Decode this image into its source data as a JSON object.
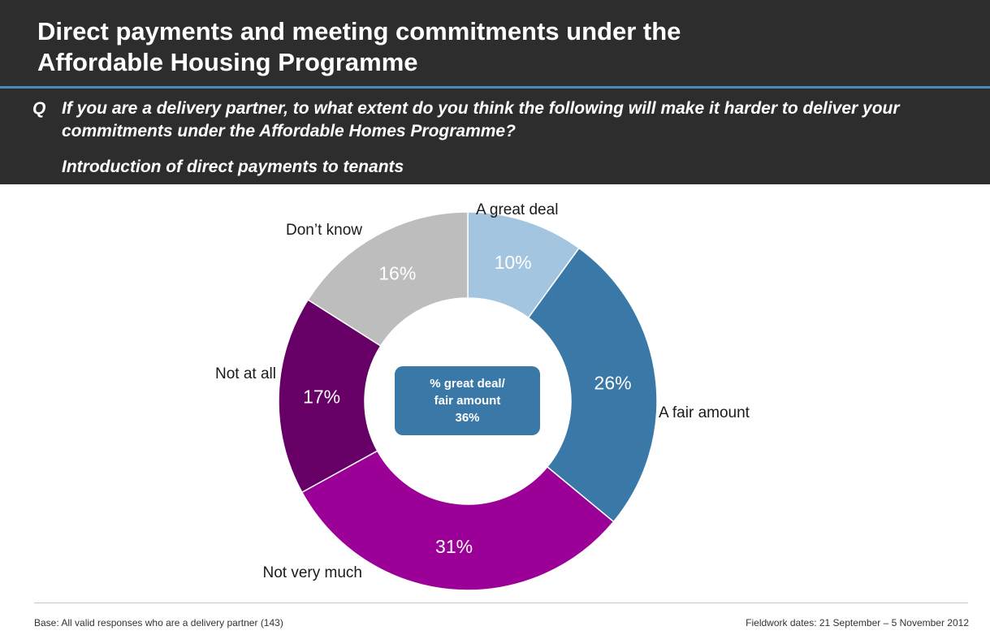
{
  "header": {
    "title_line1": "Direct payments and meeting commitments under the",
    "title_line2": "Affordable Housing Programme"
  },
  "question": {
    "marker": "Q",
    "text": "If you are a delivery partner, to what extent do you think the following will make it harder to deliver your commitments under the Affordable Homes Programme?",
    "subtext": "Introduction of direct payments to tenants"
  },
  "chart_data": {
    "type": "pie",
    "variant": "donut",
    "slices": [
      {
        "label": "A great deal",
        "value": 10,
        "value_label": "10%",
        "color": "#a3c5e0"
      },
      {
        "label": "A fair amount",
        "value": 26,
        "value_label": "26%",
        "color": "#3a78a8"
      },
      {
        "label": "Not very much",
        "value": 31,
        "value_label": "31%",
        "color": "#9b0097"
      },
      {
        "label": "Not at all",
        "value": 17,
        "value_label": "17%",
        "color": "#660066"
      },
      {
        "label": "Don’t know",
        "value": 16,
        "value_label": "16%",
        "color": "#bdbdbd"
      }
    ],
    "center_box": {
      "line1": "% great deal/",
      "line2": "fair amount",
      "value": "36%",
      "color": "#3a78a8"
    }
  },
  "footer": {
    "base": "Base: All valid responses who are a delivery partner (143)",
    "fieldwork": "Fieldwork dates: 21 September – 5 November 2012"
  }
}
